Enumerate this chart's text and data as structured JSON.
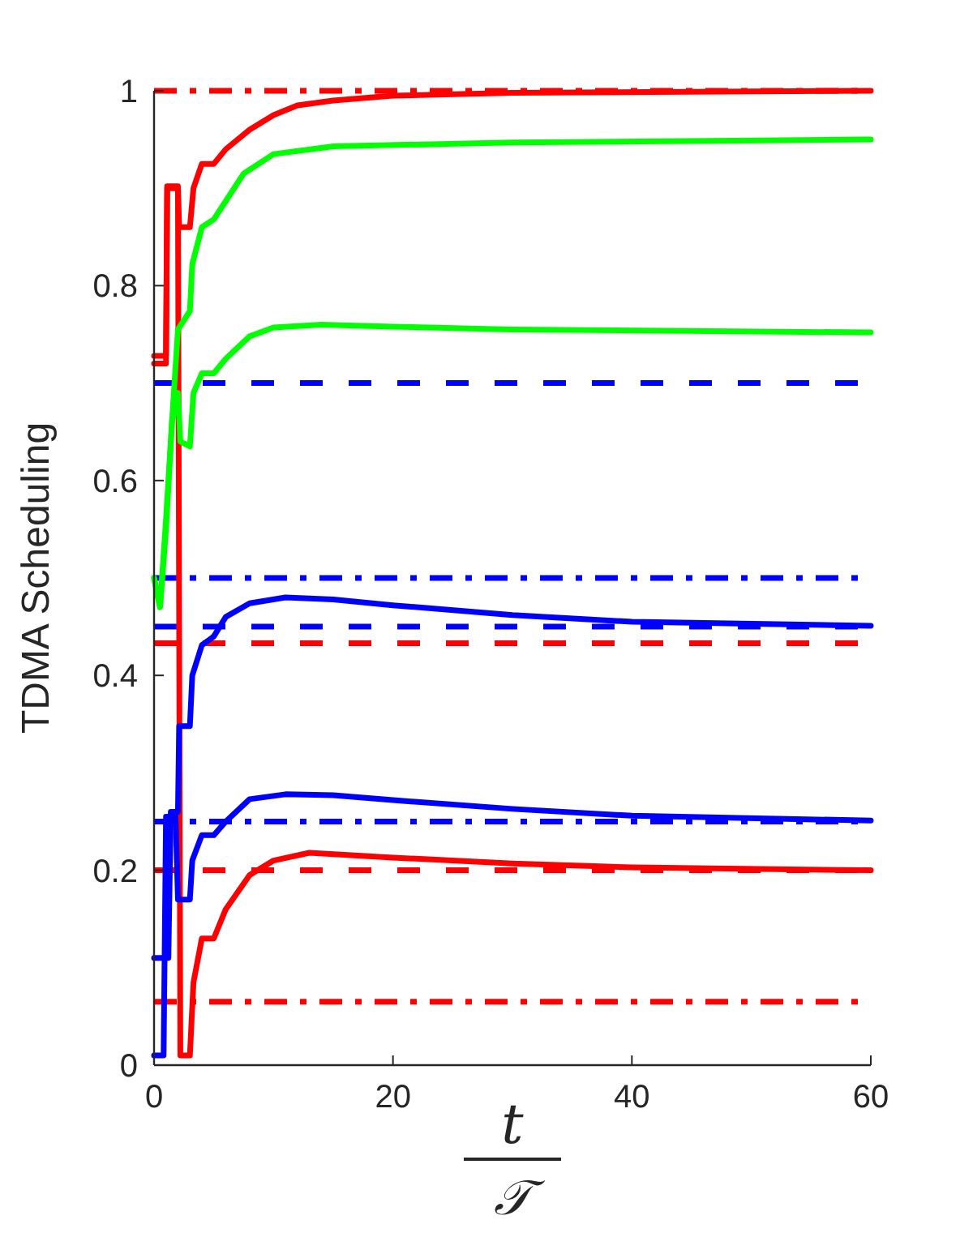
{
  "chart_data": {
    "type": "line",
    "ylabel": "TDMA Scheduling",
    "xlabel": "t/𝒯",
    "xlim": [
      0,
      60
    ],
    "xticks": [
      0,
      20,
      40,
      60
    ],
    "ylim": [
      0,
      1
    ],
    "yticks": [
      0,
      0.2,
      0.4,
      0.6,
      0.8,
      1
    ],
    "grid": false,
    "line_style": "solid",
    "marker": "none",
    "series": [
      {
        "color": "#ff0000",
        "x": [
          0,
          1,
          1.1,
          2,
          2.1,
          3,
          3.3,
          4,
          5,
          6,
          8,
          10,
          12,
          15,
          20,
          30,
          60
        ],
        "values": [
          0.728,
          0.728,
          0.902,
          0.902,
          0.86,
          0.86,
          0.9,
          0.925,
          0.925,
          0.94,
          0.96,
          0.975,
          0.985,
          0.99,
          0.995,
          0.998,
          1.0
        ]
      },
      {
        "color": "#ff0000",
        "x": [
          0,
          1,
          1.1,
          2,
          2.2,
          3,
          3.3,
          4,
          5,
          6,
          8,
          10,
          13,
          20,
          30,
          40,
          60
        ],
        "values": [
          0.72,
          0.72,
          0.9,
          0.9,
          0.01,
          0.01,
          0.085,
          0.13,
          0.13,
          0.16,
          0.195,
          0.21,
          0.218,
          0.213,
          0.207,
          0.203,
          0.2
        ]
      },
      {
        "color": "#00ff00",
        "x": [
          0,
          0.5,
          1,
          1.5,
          2,
          3,
          3.2,
          4,
          5,
          7.5,
          10,
          15,
          30,
          60
        ],
        "values": [
          0.5,
          0.47,
          0.55,
          0.66,
          0.755,
          0.774,
          0.822,
          0.86,
          0.868,
          0.915,
          0.935,
          0.943,
          0.947,
          0.95
        ]
      },
      {
        "color": "#00ff00",
        "x": [
          0,
          0.5,
          1,
          1.5,
          2,
          2.2,
          3,
          3.3,
          4,
          5,
          6,
          8,
          10,
          14,
          20,
          30,
          60
        ],
        "values": [
          0.5,
          0.47,
          0.56,
          0.66,
          0.69,
          0.64,
          0.635,
          0.69,
          0.71,
          0.71,
          0.725,
          0.748,
          0.757,
          0.76,
          0.758,
          0.755,
          0.752
        ]
      },
      {
        "color": "#0000ff",
        "x": [
          0,
          1.2,
          1.4,
          2,
          2.1,
          3,
          3.2,
          4,
          5,
          6,
          8,
          11,
          15,
          20,
          30,
          40,
          60
        ],
        "values": [
          0.11,
          0.11,
          0.26,
          0.26,
          0.348,
          0.348,
          0.4,
          0.431,
          0.44,
          0.46,
          0.474,
          0.48,
          0.478,
          0.472,
          0.462,
          0.455,
          0.451
        ]
      },
      {
        "color": "#0000ff",
        "x": [
          0,
          0.8,
          1,
          1.8,
          2,
          3,
          3.2,
          4,
          5,
          6,
          8,
          11,
          15,
          20,
          30,
          40,
          60
        ],
        "values": [
          0.01,
          0.01,
          0.255,
          0.255,
          0.17,
          0.17,
          0.21,
          0.236,
          0.236,
          0.25,
          0.273,
          0.278,
          0.277,
          0.272,
          0.263,
          0.256,
          0.251
        ]
      }
    ],
    "ref_lines": [
      {
        "axis": "y",
        "value": 1,
        "color": "#ff0000",
        "line_style": "dashdot"
      },
      {
        "axis": "y",
        "value": 0.065,
        "color": "#ff0000",
        "line_style": "dashdot"
      },
      {
        "axis": "y",
        "value": 0.433,
        "color": "#ff0000",
        "line_style": "dashed"
      },
      {
        "axis": "y",
        "value": 0.2,
        "color": "#ff0000",
        "line_style": "dashed"
      },
      {
        "axis": "y",
        "value": 0.7,
        "color": "#0000ff",
        "line_style": "dashed"
      },
      {
        "axis": "y",
        "value": 0.45,
        "color": "#0000ff",
        "line_style": "dashed"
      },
      {
        "axis": "y",
        "value": 0.5,
        "color": "#0000ff",
        "line_style": "dashdot"
      },
      {
        "axis": "y",
        "value": 0.25,
        "color": "#0000ff",
        "line_style": "dashdot"
      }
    ]
  }
}
